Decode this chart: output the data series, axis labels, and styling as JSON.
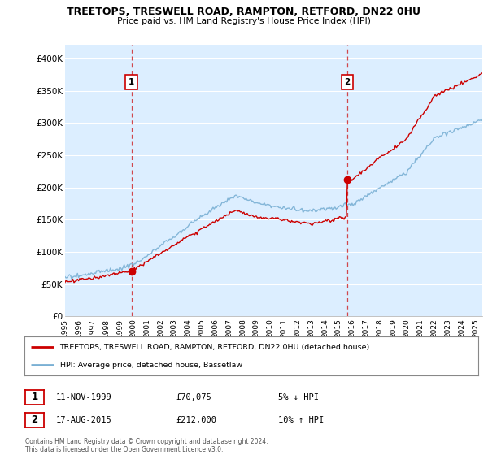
{
  "title": "TREETOPS, TRESWELL ROAD, RAMPTON, RETFORD, DN22 0HU",
  "subtitle": "Price paid vs. HM Land Registry's House Price Index (HPI)",
  "ylabel_ticks": [
    "£0",
    "£50K",
    "£100K",
    "£150K",
    "£200K",
    "£250K",
    "£300K",
    "£350K",
    "£400K"
  ],
  "ytick_values": [
    0,
    50000,
    100000,
    150000,
    200000,
    250000,
    300000,
    350000,
    400000
  ],
  "ylim": [
    0,
    420000
  ],
  "xlim_start": 1995.0,
  "xlim_end": 2025.5,
  "hpi_color": "#7ab0d4",
  "price_color": "#cc0000",
  "dashed_line_color": "#cc0000",
  "plot_bg_color": "#dceeff",
  "marker1_year": 1999.87,
  "marker1_value": 70075,
  "marker1_label": "1",
  "marker2_year": 2015.63,
  "marker2_value": 212000,
  "marker2_label": "2",
  "legend_line1": "TREETOPS, TRESWELL ROAD, RAMPTON, RETFORD, DN22 0HU (detached house)",
  "legend_line2": "HPI: Average price, detached house, Bassetlaw",
  "table_row1": [
    "1",
    "11-NOV-1999",
    "£70,075",
    "5% ↓ HPI"
  ],
  "table_row2": [
    "2",
    "17-AUG-2015",
    "£212,000",
    "10% ↑ HPI"
  ],
  "footnote": "Contains HM Land Registry data © Crown copyright and database right 2024.\nThis data is licensed under the Open Government Licence v3.0.",
  "bg_color": "#ffffff",
  "grid_color": "#ffffff",
  "xtick_years": [
    1995,
    1996,
    1997,
    1998,
    1999,
    2000,
    2001,
    2002,
    2003,
    2004,
    2005,
    2006,
    2007,
    2008,
    2009,
    2010,
    2011,
    2012,
    2013,
    2014,
    2015,
    2016,
    2017,
    2018,
    2019,
    2020,
    2021,
    2022,
    2023,
    2024,
    2025
  ]
}
